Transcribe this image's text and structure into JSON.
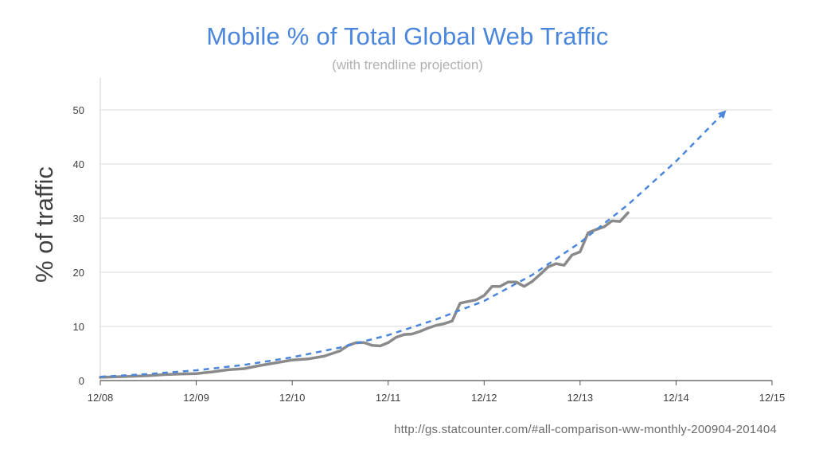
{
  "chart_data": {
    "type": "line",
    "title": "Mobile % of Total Global Web Traffic",
    "subtitle": "(with trendline projection)",
    "ylabel": "% of traffic",
    "xlabel": "",
    "source": "http://gs.statcounter.com/#all-comparison-ww-monthly-200904-201404",
    "x_ticks": [
      "12/08",
      "12/09",
      "12/10",
      "12/11",
      "12/12",
      "12/13",
      "12/14",
      "12/15"
    ],
    "y_ticks": [
      "0",
      "10",
      "20",
      "30",
      "40",
      "50"
    ],
    "ylim": [
      0,
      55
    ],
    "xlim": [
      "2008-12",
      "2015-12"
    ],
    "grid": "horizontal",
    "colors": {
      "actual": "#8a8a8a",
      "trend": "#4a86dc",
      "grid": "#d9d9d9"
    },
    "series": [
      {
        "style": "solid",
        "x": [
          "2008-12",
          "2009-02",
          "2009-04",
          "2009-06",
          "2009-08",
          "2009-10",
          "2009-12",
          "2010-02",
          "2010-04",
          "2010-06",
          "2010-08",
          "2010-10",
          "2010-12",
          "2011-02",
          "2011-04",
          "2011-05",
          "2011-06",
          "2011-07",
          "2011-08",
          "2011-09",
          "2011-10",
          "2011-11",
          "2011-12",
          "2012-01",
          "2012-02",
          "2012-03",
          "2012-04",
          "2012-05",
          "2012-06",
          "2012-07",
          "2012-08",
          "2012-09",
          "2012-10",
          "2012-11",
          "2012-12",
          "2013-01",
          "2013-02",
          "2013-03",
          "2013-04",
          "2013-05",
          "2013-06",
          "2013-07",
          "2013-08",
          "2013-09",
          "2013-10",
          "2013-11",
          "2013-12",
          "2014-01",
          "2014-02",
          "2014-03",
          "2014-04",
          "2014-05",
          "2014-06"
        ],
        "y": [
          0.6,
          0.7,
          0.8,
          0.9,
          1.1,
          1.2,
          1.3,
          1.6,
          2.0,
          2.2,
          2.8,
          3.3,
          3.8,
          4.0,
          4.5,
          5.0,
          5.5,
          6.5,
          7.0,
          7.0,
          6.5,
          6.4,
          7.0,
          8.0,
          8.5,
          8.6,
          9.1,
          9.7,
          10.2,
          10.5,
          11.0,
          14.3,
          14.6,
          14.9,
          15.7,
          17.4,
          17.4,
          18.2,
          18.2,
          17.4,
          18.3,
          19.6,
          21.0,
          21.6,
          21.3,
          23.2,
          23.8,
          27.3,
          27.9,
          28.4,
          29.5,
          29.4,
          31.0
        ]
      },
      {
        "style": "dashed",
        "arrow": true,
        "x": [
          "2008-12",
          "2009-06",
          "2009-12",
          "2010-06",
          "2010-12",
          "2011-06",
          "2011-12",
          "2012-06",
          "2012-12",
          "2013-06",
          "2013-12",
          "2014-06",
          "2014-12",
          "2015-06"
        ],
        "y": [
          0.7,
          1.2,
          1.9,
          2.9,
          4.3,
          6.1,
          8.4,
          11.3,
          14.7,
          19.5,
          25.5,
          32.5,
          40.5,
          49.5
        ]
      }
    ]
  }
}
